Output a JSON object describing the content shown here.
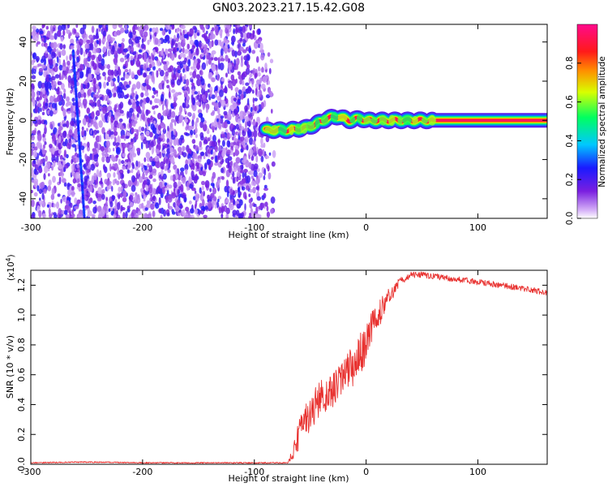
{
  "title": "GN03.2023.217.15.42.G08",
  "chart_data": [
    {
      "type": "heatmap",
      "xlabel": "Height of straight line (km)",
      "ylabel": "Frequency (Hz)",
      "xlim": [
        -300,
        162
      ],
      "ylim": [
        -50,
        49
      ],
      "xticks": [
        -300,
        -200,
        -100,
        0,
        100
      ],
      "yticks": [
        -40,
        -20,
        0,
        20,
        40
      ],
      "colorbar": {
        "label": "Normalized spectral amplitude",
        "range": [
          0,
          1
        ],
        "ticks": [
          0.0,
          0.2,
          0.4,
          0.6,
          0.8
        ],
        "tick_labels": [
          "0.0",
          "0.2",
          "0.4",
          "0.6",
          "0.8"
        ],
        "colormap": "white-purple-blue-cyan-green-yellow-red-magenta"
      },
      "noise_region": {
        "x_range": [
          -300,
          -80
        ],
        "freq_range": [
          -50,
          49
        ],
        "amplitude_range": [
          0.05,
          0.25
        ]
      },
      "signal_track": {
        "points": [
          {
            "x": -90,
            "freq": -5
          },
          {
            "x": -70,
            "freq": -5
          },
          {
            "x": -55,
            "freq": -4
          },
          {
            "x": -45,
            "freq": -2
          },
          {
            "x": -35,
            "freq": 1
          },
          {
            "x": -25,
            "freq": 2
          },
          {
            "x": -15,
            "freq": 0
          },
          {
            "x": -5,
            "freq": 1
          },
          {
            "x": 0,
            "freq": 0
          },
          {
            "x": 50,
            "freq": 0
          },
          {
            "x": 162,
            "freq": 0
          }
        ],
        "amplitude": 0.95
      }
    },
    {
      "type": "line",
      "xlabel": "Height of straight line (km)",
      "ylabel": "SNR (10 * v/v)",
      "y_multiplier_label": "(x10",
      "y_multiplier_exp": "4",
      "y_multiplier_close": ")",
      "xlim": [
        -300,
        162
      ],
      "ylim": [
        0,
        1.3
      ],
      "xticks": [
        -300,
        -200,
        -100,
        0,
        100
      ],
      "yticks": [
        0.0,
        0.2,
        0.4,
        0.6,
        0.8,
        1.0,
        1.2
      ],
      "ytick_labels": [
        "0.0",
        "0.2",
        "0.4",
        "0.6",
        "0.8",
        "1.0",
        "1.2"
      ],
      "series": [
        {
          "color": "#e8312f",
          "x": [
            -300,
            -250,
            -200,
            -150,
            -100,
            -70,
            -65,
            -60,
            -50,
            -40,
            -30,
            -20,
            -10,
            0,
            10,
            20,
            30,
            40,
            50,
            60,
            80,
            100,
            120,
            140,
            162
          ],
          "values": [
            0.01,
            0.015,
            0.01,
            0.01,
            0.01,
            0.01,
            0.08,
            0.2,
            0.35,
            0.45,
            0.5,
            0.58,
            0.68,
            0.82,
            0.98,
            1.12,
            1.22,
            1.27,
            1.27,
            1.26,
            1.24,
            1.22,
            1.2,
            1.18,
            1.15
          ],
          "noise_amplitude": [
            0.004,
            0.004,
            0.004,
            0.004,
            0.004,
            0.004,
            0.05,
            0.1,
            0.12,
            0.12,
            0.12,
            0.12,
            0.14,
            0.14,
            0.1,
            0.06,
            0.03,
            0.02,
            0.02,
            0.02,
            0.02,
            0.02,
            0.02,
            0.02,
            0.02
          ]
        }
      ]
    }
  ]
}
